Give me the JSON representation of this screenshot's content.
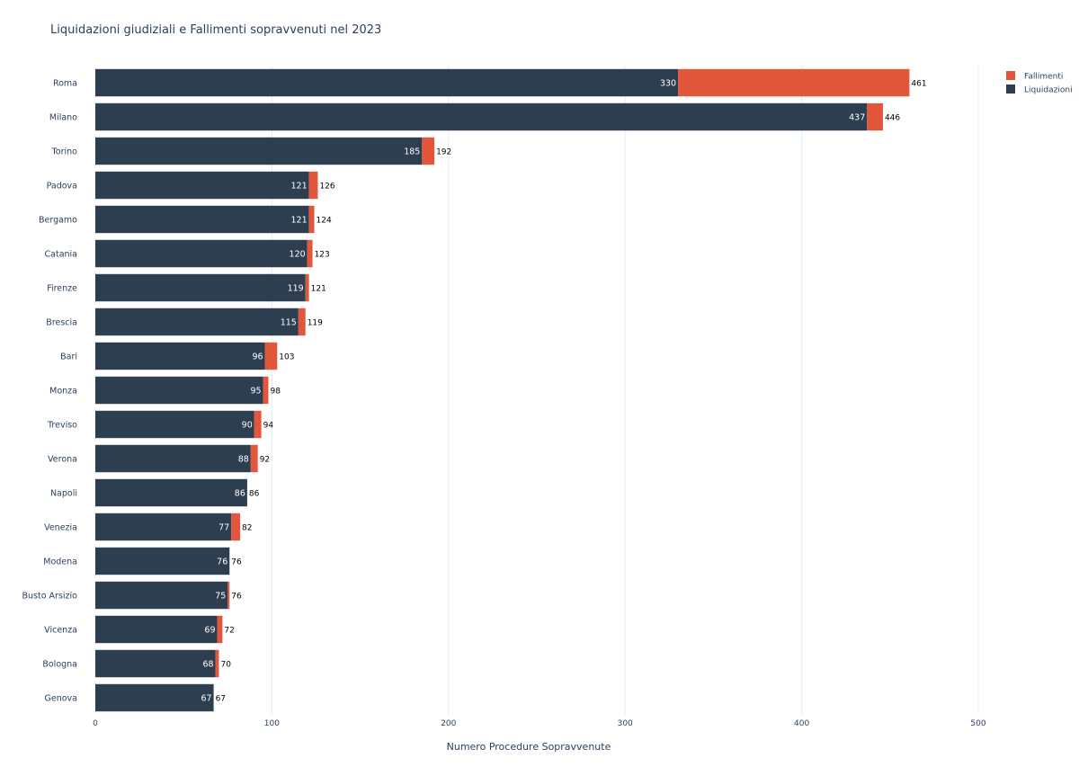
{
  "chart_data": {
    "type": "bar",
    "orientation": "horizontal",
    "barmode": "stack",
    "title": "Liquidazioni giudiziali e Fallimenti sopravvenuti nel 2023",
    "xlabel": "Numero Procedure Sopravvenute",
    "ylabel": "",
    "xlim": [
      0,
      500
    ],
    "xticks": [
      0,
      100,
      200,
      300,
      400,
      500
    ],
    "grid": true,
    "legend_position": "top-right",
    "categories": [
      "Roma",
      "Milano",
      "Torino",
      "Padova",
      "Bergamo",
      "Catania",
      "Firenze",
      "Brescia",
      "Bari",
      "Monza",
      "Treviso",
      "Verona",
      "Napoli",
      "Venezia",
      "Modena",
      "Busto Arsizio",
      "Vicenza",
      "Bologna",
      "Genova"
    ],
    "series": [
      {
        "name": "Liquidazioni",
        "color": "#2c3e50",
        "values": [
          330,
          437,
          185,
          121,
          121,
          120,
          119,
          115,
          96,
          95,
          90,
          88,
          86,
          77,
          76,
          75,
          69,
          68,
          67
        ]
      },
      {
        "name": "Fallimenti",
        "color": "#e2563b",
        "values": [
          131,
          9,
          7,
          5,
          3,
          3,
          2,
          4,
          7,
          3,
          4,
          4,
          0,
          5,
          0,
          1,
          3,
          2,
          0
        ]
      }
    ],
    "totals": [
      461,
      446,
      192,
      126,
      124,
      123,
      121,
      119,
      103,
      98,
      94,
      92,
      86,
      82,
      76,
      76,
      72,
      70,
      67
    ],
    "legend": [
      {
        "name": "Fallimenti",
        "color": "#e2563b"
      },
      {
        "name": "Liquidazioni",
        "color": "#2c3e50"
      }
    ]
  }
}
